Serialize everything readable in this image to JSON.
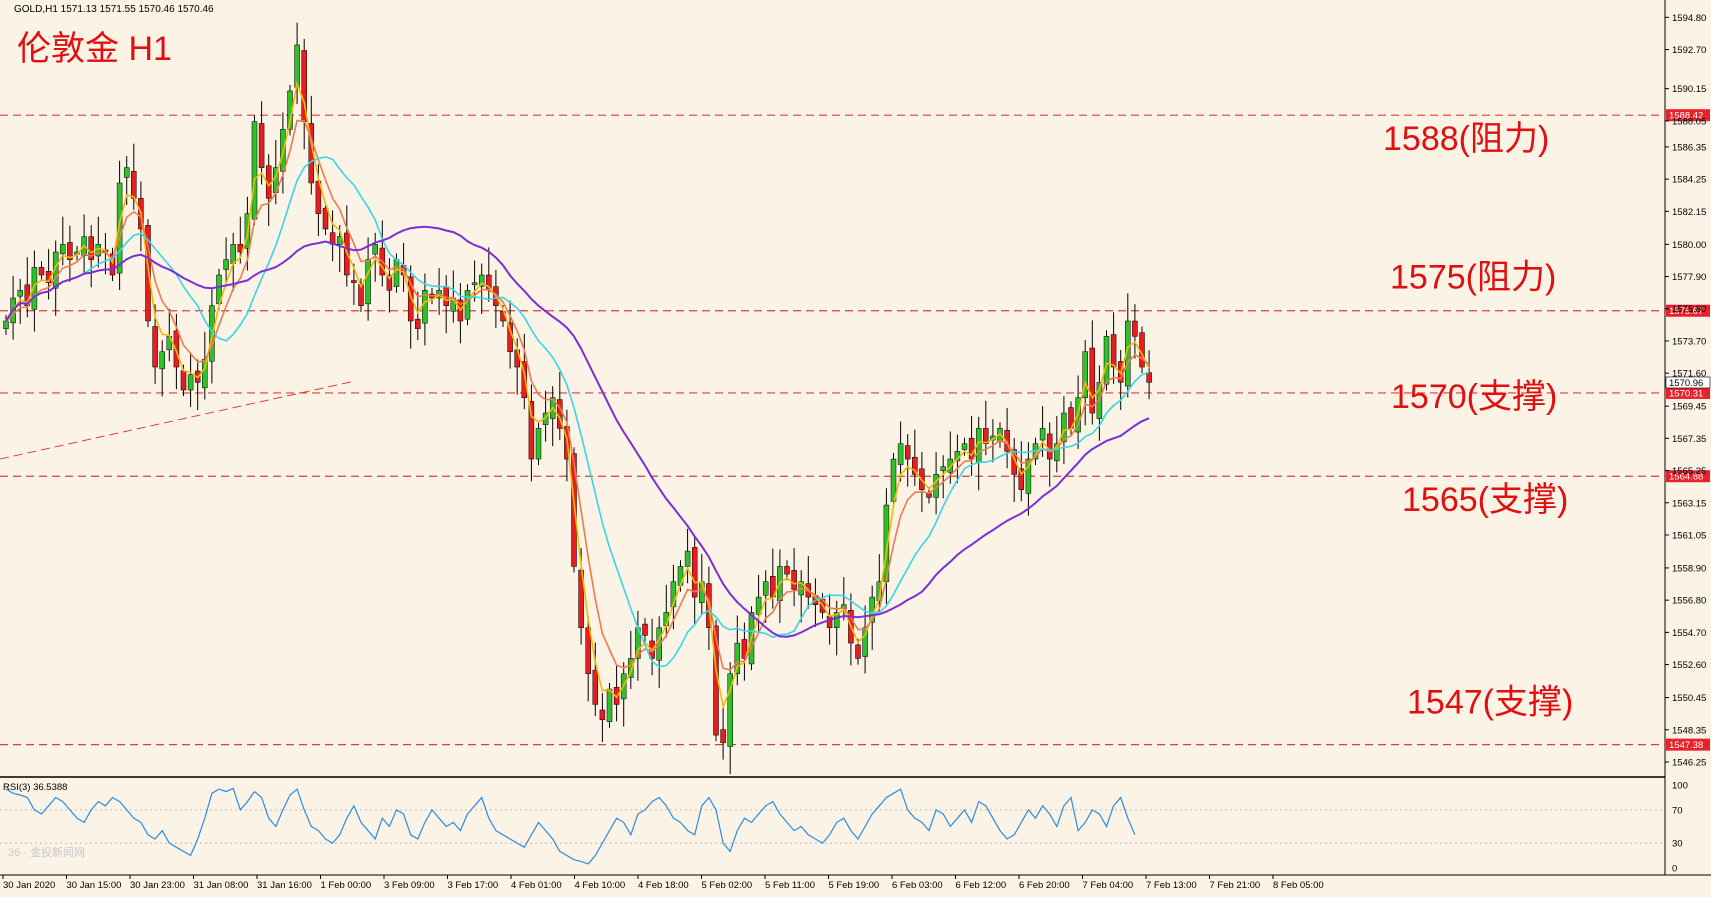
{
  "header": {
    "symbol_info": "GOLD,H1  1571.13 1571.55 1570.46 1570.46",
    "title": "伦敦金 H1"
  },
  "colors": {
    "background": "#fbf3e6",
    "bull": "#31c02b",
    "bear": "#e61e1e",
    "level_line": "#e23b3b",
    "ma_fast": "#f5b800",
    "ma_mid": "#f07a4a",
    "ma_slow": "#36d6e8",
    "ma_long": "#7a2fd6",
    "rsi_line": "#2d8be6",
    "annotation": "#e01010"
  },
  "annotations": [
    {
      "text": "1588(阻力)",
      "price": 1588.42
    },
    {
      "text": "1575(阻力)",
      "price": 1575.67
    },
    {
      "text": "1570(支撑)",
      "price": 1570.31
    },
    {
      "text": "1565(支撑)",
      "price": 1564.88
    },
    {
      "text": "1547(支撑)",
      "price": 1547.38
    }
  ],
  "price_tags": {
    "current": "1570.96",
    "current2": "1570.31"
  },
  "watermark": "36 · 金投新闻网",
  "chart_data": {
    "type": "candlestick",
    "ylim": [
      1545.4,
      1595.8
    ],
    "y_ticks": [
      "1594.80",
      "1592.70",
      "1590.15",
      "1588.05",
      "1586.35",
      "1584.25",
      "1582.15",
      "1580.00",
      "1577.90",
      "1575.80",
      "1573.70",
      "1571.60",
      "1569.45",
      "1567.35",
      "1565.25",
      "1563.15",
      "1561.05",
      "1558.90",
      "1556.80",
      "1554.70",
      "1552.60",
      "1550.45",
      "1548.35",
      "1546.25"
    ],
    "levels": [
      {
        "price": 1588.42,
        "label": "1588.42"
      },
      {
        "price": 1575.67,
        "label": "1575.67"
      },
      {
        "price": 1570.31,
        "label": "1570.31"
      },
      {
        "price": 1564.88,
        "label": "1564.88"
      },
      {
        "price": 1547.38,
        "label": "1547.38"
      }
    ],
    "x_labels": [
      "30 Jan 2020",
      "30 Jan 15:00",
      "30 Jan 23:00",
      "31 Jan 08:00",
      "31 Jan 16:00",
      "1 Feb 00:00",
      "3 Feb 09:00",
      "3 Feb 17:00",
      "4 Feb 01:00",
      "4 Feb 10:00",
      "4 Feb 18:00",
      "5 Feb 02:00",
      "5 Feb 11:00",
      "5 Feb 19:00",
      "6 Feb 03:00",
      "6 Feb 12:00",
      "6 Feb 20:00",
      "7 Feb 04:00",
      "7 Feb 13:00",
      "7 Feb 21:00",
      "8 Feb 05:00"
    ],
    "close": [
      1575,
      1576.5,
      1577,
      1576,
      1578.5,
      1578,
      1577.5,
      1579.5,
      1580,
      1579,
      1579.5,
      1580.5,
      1579,
      1580,
      1579.5,
      1578,
      1584,
      1585,
      1583,
      1581,
      1575,
      1572,
      1573,
      1574,
      1572,
      1570.5,
      1571.5,
      1571,
      1572.5,
      1576,
      1578,
      1579,
      1580,
      1579.5,
      1582,
      1588,
      1585,
      1583,
      1585,
      1587.5,
      1590,
      1593,
      1588,
      1584,
      1582,
      1581,
      1580,
      1580.5,
      1578,
      1577.5,
      1576,
      1579,
      1580,
      1578,
      1577,
      1579,
      1578,
      1575,
      1574.5,
      1577,
      1576.5,
      1577,
      1576,
      1576.5,
      1575,
      1577,
      1577.5,
      1578,
      1577,
      1576,
      1575,
      1573,
      1572,
      1570,
      1566,
      1568,
      1569,
      1570,
      1568,
      1566,
      1559,
      1555,
      1552,
      1550,
      1549,
      1551,
      1550,
      1552,
      1553,
      1555,
      1554.5,
      1553,
      1555,
      1556,
      1558,
      1559,
      1560,
      1557,
      1558,
      1555,
      1548,
      1547.5,
      1552,
      1554,
      1553,
      1556,
      1557,
      1558,
      1557,
      1559,
      1558.5,
      1557.5,
      1558,
      1557,
      1556.5,
      1556,
      1555,
      1556,
      1556.5,
      1554,
      1553,
      1555,
      1557,
      1558,
      1563,
      1566,
      1567,
      1566,
      1565,
      1564,
      1563.5,
      1565,
      1565.5,
      1566,
      1566.5,
      1567,
      1566,
      1568,
      1567,
      1567.5,
      1568,
      1566.5,
      1565,
      1564,
      1566,
      1567,
      1568,
      1566,
      1567,
      1569,
      1568,
      1570,
      1573,
      1569,
      1571,
      1574,
      1572,
      1571,
      1575,
      1574,
      1572,
      1571
    ],
    "rsi": {
      "label": "RSI(3) 36.5388",
      "ticks": [
        "100",
        "70",
        "30",
        "0"
      ],
      "levels": [
        70,
        30
      ],
      "values": [
        95,
        90,
        88,
        85,
        70,
        65,
        75,
        85,
        80,
        70,
        60,
        55,
        70,
        80,
        75,
        85,
        80,
        70,
        60,
        55,
        40,
        35,
        45,
        30,
        25,
        20,
        15,
        35,
        60,
        90,
        95,
        92,
        96,
        70,
        80,
        92,
        85,
        60,
        50,
        70,
        88,
        95,
        70,
        50,
        45,
        35,
        30,
        40,
        60,
        75,
        55,
        45,
        35,
        60,
        50,
        70,
        65,
        40,
        35,
        55,
        70,
        60,
        50,
        55,
        45,
        65,
        75,
        85,
        60,
        45,
        40,
        35,
        30,
        25,
        40,
        55,
        45,
        35,
        20,
        15,
        10,
        8,
        5,
        15,
        30,
        45,
        60,
        55,
        40,
        65,
        70,
        80,
        85,
        75,
        60,
        55,
        45,
        40,
        75,
        85,
        70,
        30,
        20,
        45,
        60,
        55,
        65,
        75,
        80,
        65,
        55,
        45,
        50,
        40,
        35,
        30,
        40,
        55,
        60,
        45,
        35,
        50,
        65,
        75,
        85,
        90,
        95,
        70,
        60,
        55,
        45,
        70,
        65,
        50,
        60,
        70,
        55,
        80,
        75,
        60,
        45,
        35,
        40,
        55,
        70,
        60,
        75,
        65,
        50,
        75,
        85,
        45,
        55,
        70,
        65,
        50,
        75,
        85,
        60,
        40
      ]
    }
  }
}
